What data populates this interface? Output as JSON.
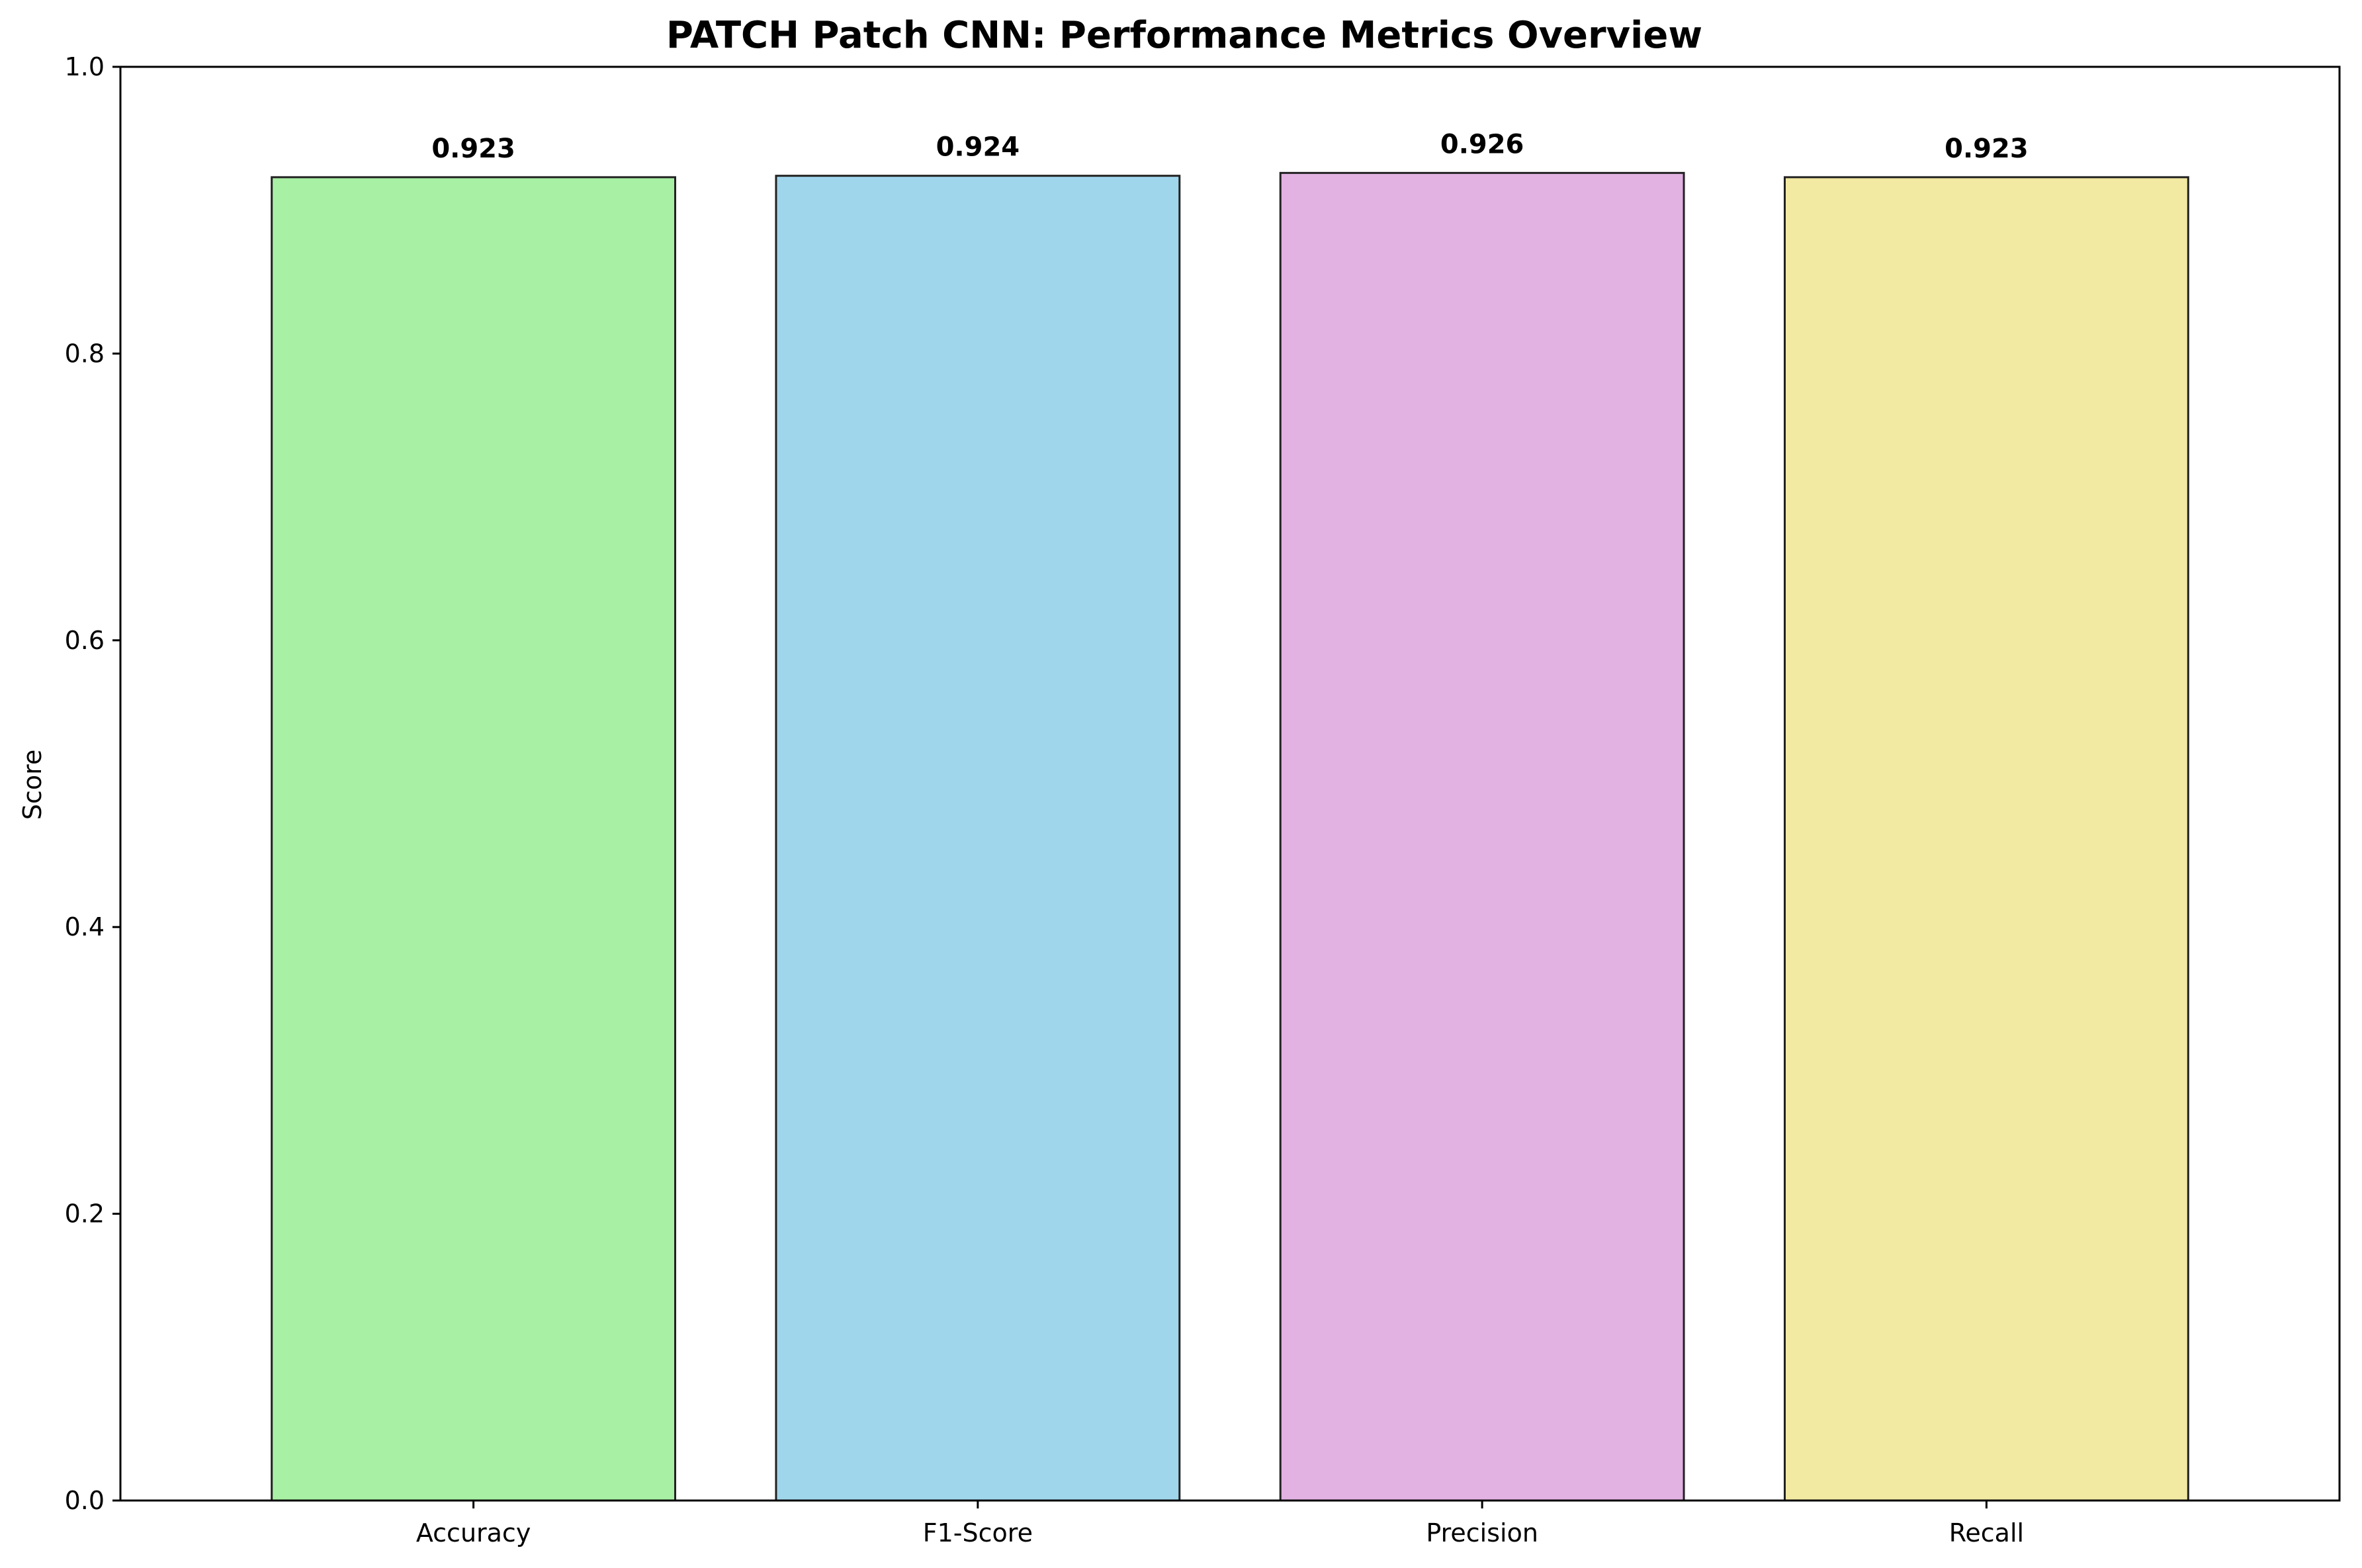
{
  "chart_data": {
    "type": "bar",
    "title": "PATCH Patch CNN: Performance Metrics Overview",
    "xlabel": "",
    "ylabel": "Score",
    "categories": [
      "Accuracy",
      "F1-Score",
      "Precision",
      "Recall"
    ],
    "values": [
      0.923,
      0.924,
      0.926,
      0.923
    ],
    "value_labels": [
      "0.923",
      "0.924",
      "0.926",
      "0.923"
    ],
    "ylim": [
      0,
      1.0
    ],
    "yticks": [
      0.0,
      0.2,
      0.4,
      0.6,
      0.8,
      1.0
    ],
    "ytick_labels": [
      "0.0",
      "0.2",
      "0.4",
      "0.6",
      "0.8",
      "1.0"
    ],
    "colors": [
      "#a8f0a4",
      "#a0d6ec",
      "#e2b2e2",
      "#f2e9a2"
    ],
    "edge_color": "#222222",
    "grid": false,
    "legend": "none"
  }
}
